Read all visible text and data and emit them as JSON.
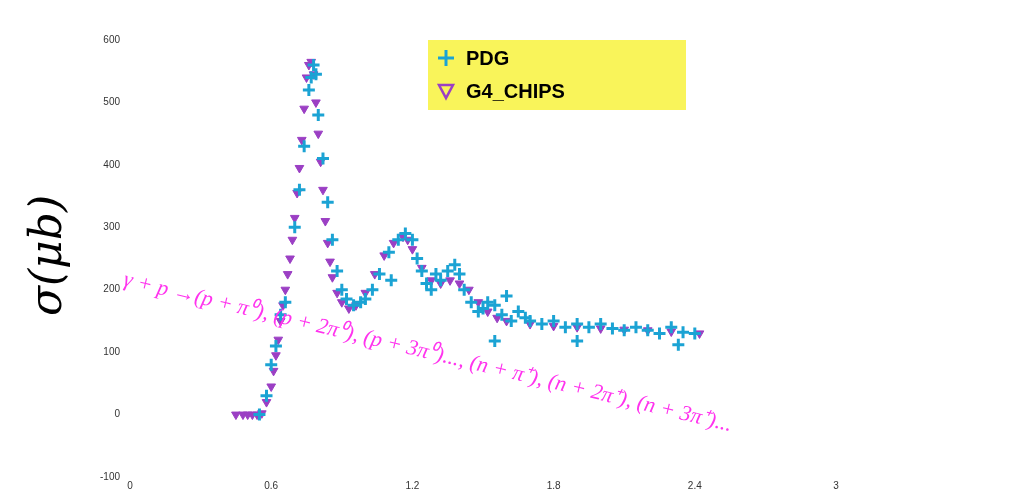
{
  "chart_data": {
    "type": "scatter",
    "ylabel": "σ(μb)",
    "xlim": [
      0,
      3
    ],
    "xticks": [
      0,
      0.6,
      1.2,
      1.8,
      2.4,
      3
    ],
    "ylim": [
      -100,
      600
    ],
    "yticks": [
      -100,
      0,
      100,
      200,
      300,
      400,
      500,
      600
    ],
    "grid": false,
    "legend": "top",
    "annotations": [
      "γ + p →(p + π⁰), (p + 2π⁰), (p + 3π⁰)..., (n + π⁺), (n + 2π⁺), (n + 3π⁺)..."
    ],
    "series": [
      {
        "name": "PDG",
        "color": "#1ba3d4",
        "marker": "cross",
        "x": [
          0.55,
          0.58,
          0.6,
          0.62,
          0.64,
          0.66,
          0.7,
          0.72,
          0.74,
          0.76,
          0.77,
          0.78,
          0.79,
          0.8,
          0.82,
          0.84,
          0.86,
          0.88,
          0.9,
          0.92,
          0.95,
          0.98,
          1.0,
          1.03,
          1.06,
          1.1,
          1.11,
          1.14,
          1.17,
          1.2,
          1.22,
          1.24,
          1.26,
          1.28,
          1.3,
          1.32,
          1.35,
          1.38,
          1.4,
          1.42,
          1.45,
          1.48,
          1.5,
          1.52,
          1.55,
          1.55,
          1.58,
          1.6,
          1.62,
          1.65,
          1.68,
          1.7,
          1.75,
          1.8,
          1.85,
          1.9,
          1.9,
          1.95,
          2.0,
          2.05,
          2.1,
          2.15,
          2.2,
          2.25,
          2.3,
          2.33,
          2.35,
          2.4
        ],
        "values": [
          0,
          30,
          80,
          110,
          160,
          180,
          300,
          360,
          430,
          520,
          540,
          560,
          545,
          480,
          410,
          340,
          280,
          230,
          200,
          185,
          175,
          180,
          185,
          200,
          225,
          260,
          215,
          280,
          290,
          280,
          250,
          230,
          210,
          200,
          225,
          215,
          230,
          240,
          225,
          200,
          180,
          165,
          170,
          180,
          175,
          118,
          160,
          190,
          150,
          165,
          155,
          150,
          145,
          150,
          140,
          145,
          118,
          140,
          145,
          138,
          135,
          140,
          135,
          130,
          140,
          112,
          132,
          130
        ]
      },
      {
        "name": "G4_CHIPS",
        "color": "#9b3fc4",
        "marker": "triangle",
        "x": [
          0.45,
          0.48,
          0.5,
          0.52,
          0.54,
          0.56,
          0.58,
          0.6,
          0.61,
          0.62,
          0.63,
          0.64,
          0.65,
          0.66,
          0.67,
          0.68,
          0.69,
          0.7,
          0.71,
          0.72,
          0.73,
          0.74,
          0.75,
          0.76,
          0.77,
          0.78,
          0.79,
          0.8,
          0.81,
          0.82,
          0.83,
          0.84,
          0.85,
          0.86,
          0.88,
          0.9,
          0.93,
          0.96,
          1.0,
          1.04,
          1.08,
          1.12,
          1.16,
          1.18,
          1.2,
          1.24,
          1.28,
          1.32,
          1.36,
          1.4,
          1.44,
          1.48,
          1.52,
          1.56,
          1.6,
          1.7,
          1.8,
          1.9,
          2.0,
          2.1,
          2.2,
          2.3,
          2.42
        ],
        "values": [
          0,
          0,
          0,
          0,
          0,
          2,
          20,
          45,
          70,
          95,
          120,
          150,
          175,
          200,
          225,
          250,
          280,
          315,
          355,
          395,
          440,
          490,
          540,
          560,
          565,
          545,
          500,
          450,
          405,
          360,
          310,
          275,
          245,
          220,
          195,
          180,
          170,
          175,
          195,
          225,
          255,
          275,
          285,
          280,
          265,
          235,
          215,
          210,
          215,
          210,
          200,
          180,
          165,
          155,
          150,
          145,
          142,
          140,
          138,
          136,
          135,
          133,
          130
        ]
      }
    ]
  }
}
